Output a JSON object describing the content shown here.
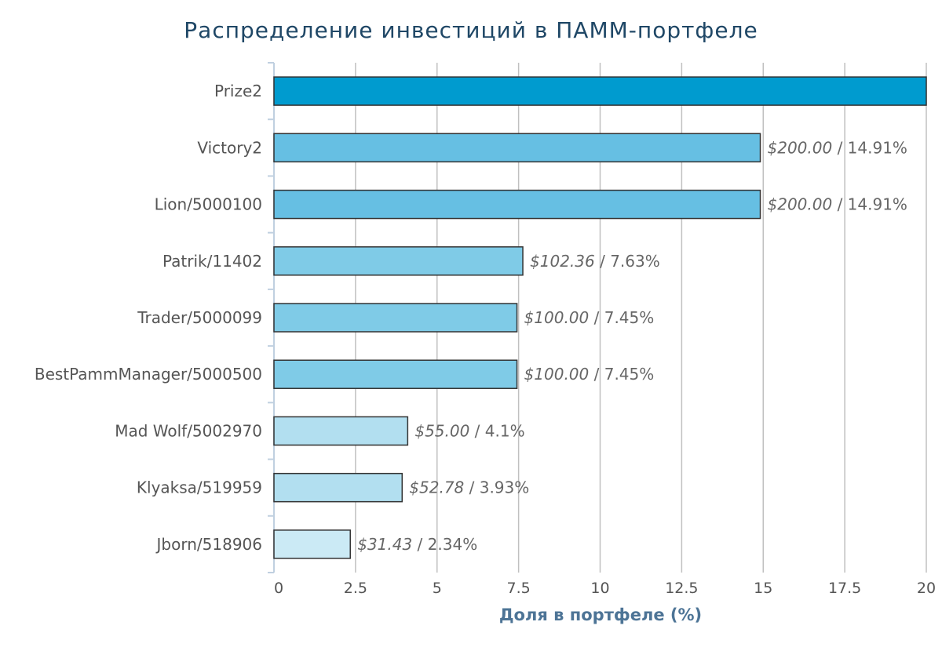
{
  "chart_data": {
    "type": "bar",
    "orientation": "horizontal",
    "title": "Распределение инвестиций в ПАММ-портфеле",
    "xlabel": "Доля в портфеле (%)",
    "ylabel": "",
    "xlim": [
      0,
      20
    ],
    "xticks": [
      "0",
      "2.5",
      "5",
      "7.5",
      "10",
      "12.5",
      "15",
      "17.5",
      "20"
    ],
    "grid": true,
    "categories": [
      "Prize2",
      "Victory2",
      "Lion/5000100",
      "Patrik/11402",
      "Trader/5000099",
      "BestPammManager/5000500",
      "Mad Wolf/5002970",
      "Klyaksa/519959",
      "Jborn/518906"
    ],
    "values": [
      20,
      14.91,
      14.91,
      7.63,
      7.45,
      7.45,
      4.1,
      3.93,
      2.34
    ],
    "amounts": [
      "",
      "$200.00",
      "$200.00",
      "$102.36",
      "$100.00",
      "$100.00",
      "$55.00",
      "$52.78",
      "$31.43"
    ],
    "percents": [
      "",
      "14.91%",
      "14.91%",
      "7.63%",
      "7.45%",
      "7.45%",
      "4.1%",
      "3.93%",
      "2.34%"
    ],
    "colors": [
      "#009bcf",
      "#66bfe3",
      "#66bfe3",
      "#7fcbe7",
      "#7fcbe7",
      "#7fcbe7",
      "#b2dff0",
      "#b2dff0",
      "#cbeaf5"
    ],
    "bar_border": "#333333",
    "grid_color": "#c0c0c0",
    "axis_color": "#c0d0e0"
  }
}
